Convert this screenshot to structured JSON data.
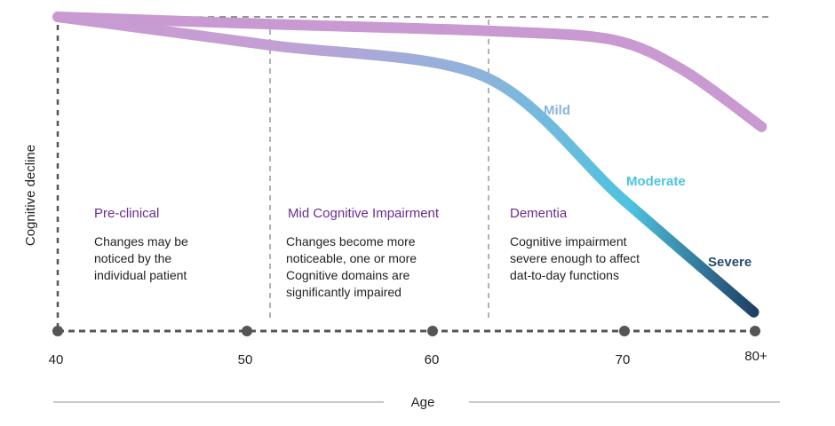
{
  "y_axis_label": "Cognitive decline",
  "x_axis_label": "Age",
  "ticks": [
    "40",
    "50",
    "60",
    "70",
    "80+"
  ],
  "phases": [
    {
      "title": "Pre-clinical",
      "lines": [
        "Changes may be",
        "noticed by the",
        "individual patient"
      ]
    },
    {
      "title": "Mid Cognitive Impairment",
      "lines": [
        "Changes become more",
        "noticeable, one or more",
        "Cognitive domains are",
        "significantly impaired"
      ]
    },
    {
      "title": "Dementia",
      "lines": [
        "Cognitive impairment",
        "severe enough to affect",
        "dat-to-day functions"
      ]
    }
  ],
  "stages": [
    {
      "label": "Mild",
      "color": "#8ab4dc"
    },
    {
      "label": "Moderate",
      "color": "#4ec3e0"
    },
    {
      "label": "Severe",
      "color": "#2a4a6e"
    }
  ],
  "chart_data": {
    "type": "line",
    "xlabel": "Age",
    "ylabel": "Cognitive decline",
    "x_ticks": [
      "40",
      "50",
      "60",
      "70",
      "80+"
    ],
    "series": [
      {
        "color": "#c99ad1",
        "points": [
          [
            40,
            100
          ],
          [
            51.2,
            97.7
          ],
          [
            63,
            95.5
          ],
          [
            69.4,
            92.7
          ],
          [
            74.6,
            82.8
          ],
          [
            80.5,
            65
          ]
        ]
      },
      {
        "colors": [
          "#c99ad1",
          "#8ab4dc",
          "#4ec3e0",
          "#1e4a70"
        ],
        "points": [
          [
            40,
            100
          ],
          [
            51.2,
            91
          ],
          [
            62.7,
            81
          ],
          [
            69.9,
            42
          ],
          [
            79.9,
            6
          ]
        ]
      }
    ]
  }
}
